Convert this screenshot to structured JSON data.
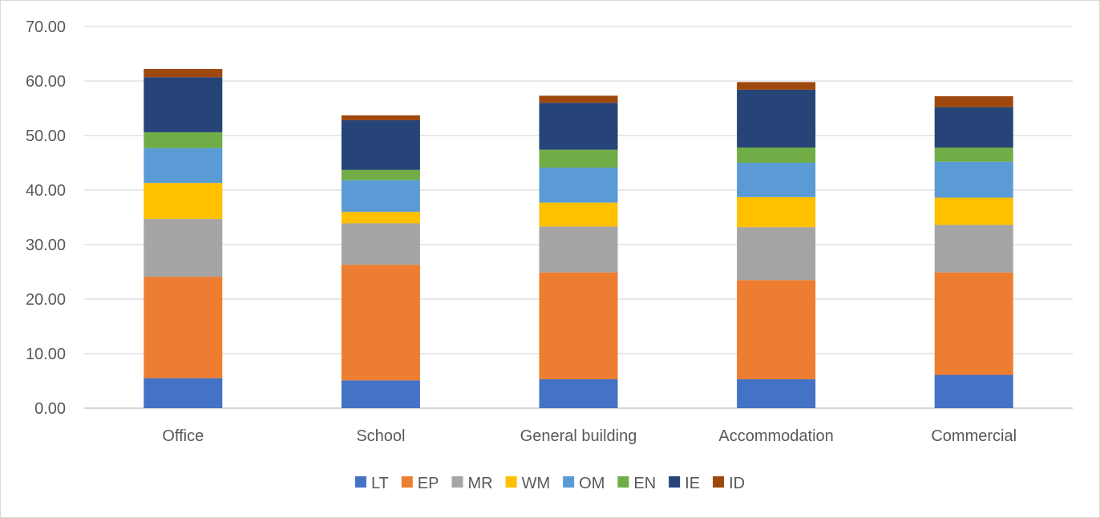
{
  "chart_data": {
    "type": "bar",
    "stacked": true,
    "categories": [
      "Office",
      "School",
      "General building",
      "Accommodation",
      "Commercial"
    ],
    "series": [
      {
        "name": "LT",
        "color": "#4472c4",
        "values": [
          5.5,
          5.1,
          5.3,
          5.3,
          6.1
        ]
      },
      {
        "name": "EP",
        "color": "#ed7d31",
        "values": [
          18.6,
          21.2,
          19.6,
          18.2,
          18.8
        ]
      },
      {
        "name": "MR",
        "color": "#a5a5a5",
        "values": [
          10.6,
          7.6,
          8.4,
          9.7,
          8.7
        ]
      },
      {
        "name": "WM",
        "color": "#ffc000",
        "values": [
          6.6,
          2.1,
          4.4,
          5.5,
          5.0
        ]
      },
      {
        "name": "OM",
        "color": "#5b9bd5",
        "values": [
          6.4,
          5.8,
          6.4,
          6.3,
          6.6
        ]
      },
      {
        "name": "EN",
        "color": "#70ad47",
        "values": [
          2.9,
          1.9,
          3.3,
          2.8,
          2.6
        ]
      },
      {
        "name": "IE",
        "color": "#264478",
        "values": [
          10.1,
          9.1,
          8.6,
          10.6,
          7.4
        ]
      },
      {
        "name": "ID",
        "color": "#9e480e",
        "values": [
          1.5,
          0.9,
          1.3,
          1.4,
          2.0
        ]
      }
    ],
    "y_ticks": [
      "0.00",
      "10.00",
      "20.00",
      "30.00",
      "40.00",
      "50.00",
      "60.00",
      "70.00"
    ],
    "ylim": [
      0,
      70
    ],
    "title": "",
    "xlabel": "",
    "ylabel": "",
    "grid": true,
    "legend_position": "bottom"
  }
}
